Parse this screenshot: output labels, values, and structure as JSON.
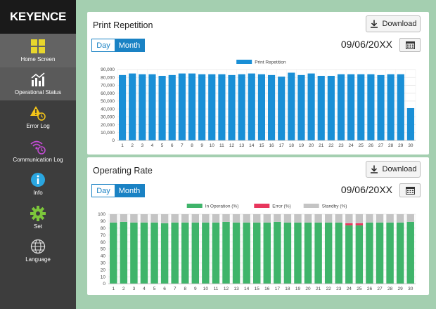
{
  "brand": "KEYENCE",
  "nav": [
    {
      "label": "Home Screen",
      "icon": "home-grid-icon"
    },
    {
      "label": "Operational Status",
      "icon": "status-chart-icon"
    },
    {
      "label": "Error Log",
      "icon": "warning-clock-icon"
    },
    {
      "label": "Communication Log",
      "icon": "wifi-clock-icon"
    },
    {
      "label": "Info",
      "icon": "info-icon"
    },
    {
      "label": "Set",
      "icon": "gear-icon"
    },
    {
      "label": "Language",
      "icon": "globe-icon"
    }
  ],
  "print_panel": {
    "title": "Print Repetition",
    "download_label": "Download",
    "toggle_day": "Day",
    "toggle_month": "Month",
    "date": "09/06/20XX"
  },
  "operating_panel": {
    "title": "Operating Rate",
    "download_label": "Download",
    "toggle_day": "Day",
    "toggle_month": "Month",
    "date": "09/06/20XX"
  },
  "chart_data": [
    {
      "type": "bar",
      "title": "",
      "legend": [
        "Print Repetition"
      ],
      "legend_placement": "top-center",
      "categories": [
        "1",
        "2",
        "3",
        "4",
        "5",
        "6",
        "7",
        "8",
        "9",
        "10",
        "11",
        "12",
        "13",
        "14",
        "15",
        "16",
        "17",
        "18",
        "19",
        "20",
        "21",
        "22",
        "23",
        "24",
        "25",
        "26",
        "27",
        "28",
        "29",
        "30"
      ],
      "series": [
        {
          "name": "Print Repetition",
          "color": "#1a8fd6",
          "values": [
            83000,
            85000,
            84000,
            84000,
            82000,
            83000,
            85000,
            85000,
            84000,
            84000,
            84000,
            83000,
            84000,
            85000,
            84000,
            83000,
            81000,
            86000,
            83000,
            85000,
            82000,
            82000,
            84000,
            84000,
            84000,
            84000,
            83000,
            84000,
            84000,
            41000
          ]
        }
      ],
      "ylim": [
        0,
        90000
      ],
      "yticks": [
        "0",
        "10,000",
        "20,000",
        "30,000",
        "40,000",
        "50,000",
        "60,000",
        "70,000",
        "80,000",
        "90,000"
      ],
      "grid": true
    },
    {
      "type": "bar",
      "stacked": true,
      "title": "",
      "legend_placement": "top-center",
      "categories": [
        "1",
        "2",
        "3",
        "4",
        "5",
        "6",
        "7",
        "8",
        "9",
        "10",
        "11",
        "12",
        "13",
        "14",
        "15",
        "16",
        "17",
        "18",
        "19",
        "20",
        "21",
        "22",
        "23",
        "24",
        "25",
        "26",
        "27",
        "28",
        "29",
        "30"
      ],
      "series": [
        {
          "name": "In Operation (%)",
          "color": "#3fb46a",
          "values": [
            88,
            89,
            88,
            88,
            88,
            87,
            88,
            88,
            88,
            88,
            88,
            89,
            88,
            88,
            88,
            88,
            89,
            88,
            88,
            88,
            88,
            88,
            88,
            84,
            84,
            88,
            88,
            88,
            88,
            89
          ]
        },
        {
          "name": "Error (%)",
          "color": "#e8365d",
          "values": [
            0,
            0,
            0,
            0,
            0,
            0,
            0,
            0,
            0,
            0,
            0,
            0,
            0,
            0,
            0,
            0,
            0,
            0,
            0,
            0,
            0,
            0,
            0,
            3,
            3,
            0,
            0,
            0,
            0,
            0
          ]
        },
        {
          "name": "Standby (%)",
          "color": "#c4c4c4",
          "values": [
            12,
            11,
            12,
            12,
            12,
            13,
            12,
            12,
            12,
            12,
            12,
            11,
            12,
            12,
            12,
            12,
            11,
            12,
            12,
            12,
            12,
            12,
            12,
            13,
            13,
            12,
            12,
            12,
            12,
            11
          ]
        }
      ],
      "ylim": [
        0,
        100
      ],
      "yticks": [
        "0",
        "10",
        "20",
        "30",
        "40",
        "50",
        "60",
        "70",
        "80",
        "90",
        "100"
      ],
      "grid": true
    }
  ]
}
